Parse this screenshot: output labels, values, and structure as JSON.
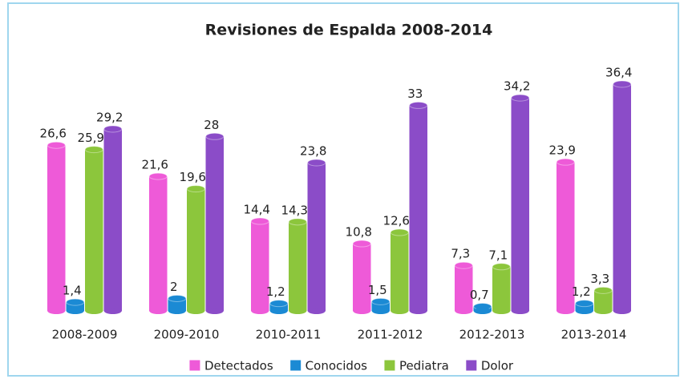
{
  "chart_data": {
    "type": "bar",
    "title": "Revisiones de Espalda 2008-2014",
    "categories": [
      "2008-2009",
      "2009-2010",
      "2010-2011",
      "2011-2012",
      "2012-2013",
      "2013-2014"
    ],
    "series": [
      {
        "name": "Detectados",
        "color": "#ee5ad8",
        "values": [
          26.6,
          21.6,
          14.4,
          10.8,
          7.3,
          23.9
        ],
        "value_labels": [
          "26,6",
          "21,6",
          "14,4",
          "10,8",
          "7,3",
          "23,9"
        ]
      },
      {
        "name": "Conocidos",
        "color": "#1b8ad4",
        "values": [
          1.4,
          2,
          1.2,
          1.5,
          0.7,
          1.2
        ],
        "value_labels": [
          "1,4",
          "2",
          "1,2",
          "1,5",
          "0,7",
          "1,2"
        ]
      },
      {
        "name": "Pediatra",
        "color": "#8cc63c",
        "values": [
          25.9,
          19.6,
          14.3,
          12.6,
          7.1,
          3.3
        ],
        "value_labels": [
          "25,9",
          "19,6",
          "14,3",
          "12,6",
          "7,1",
          "3,3"
        ]
      },
      {
        "name": "Dolor",
        "color": "#8b4cc8",
        "values": [
          29.2,
          28,
          23.8,
          33,
          34.2,
          36.4
        ],
        "value_labels": [
          "29,2",
          "28",
          "23,8",
          "33",
          "34,2",
          "36,4"
        ]
      }
    ],
    "legend": "bottom"
  }
}
